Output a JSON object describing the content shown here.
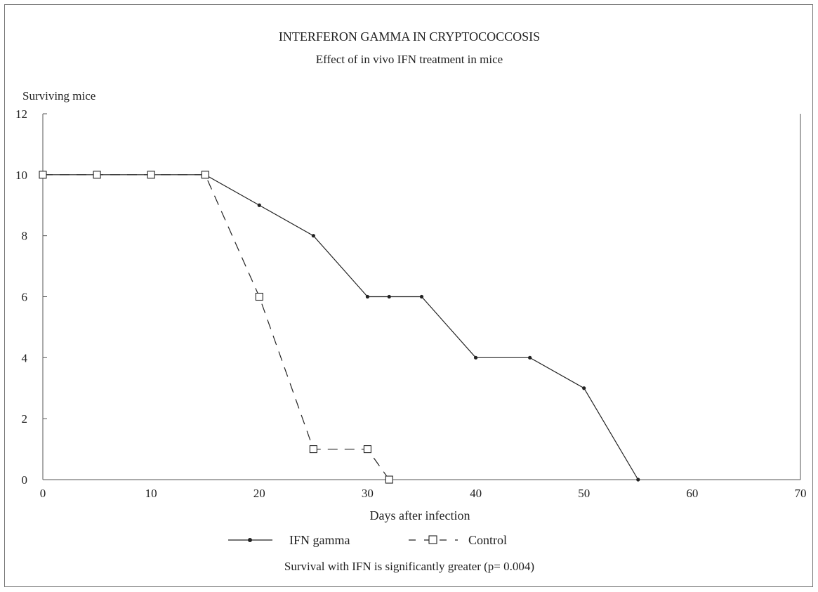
{
  "chart_data": {
    "type": "line",
    "title": "INTERFERON GAMMA IN CRYPTOCOCCOSIS",
    "subtitle": "Effect of in vivo IFN treatment in mice",
    "xlabel": "Days after infection",
    "ylabel": "Surviving mice",
    "xlim": [
      0,
      70
    ],
    "ylim": [
      0,
      12
    ],
    "xticks": [
      0,
      10,
      20,
      30,
      40,
      50,
      60,
      70
    ],
    "yticks": [
      0,
      2,
      4,
      6,
      8,
      10,
      12
    ],
    "grid": false,
    "legend_position": "bottom",
    "series": [
      {
        "name": "IFN gamma",
        "line_style": "solid",
        "marker": "filled-dot",
        "color": "#222222",
        "x": [
          0,
          5,
          10,
          15,
          20,
          25,
          30,
          32,
          35,
          40,
          45,
          50,
          55
        ],
        "y": [
          10,
          10,
          10,
          10,
          9,
          8,
          6,
          6,
          6,
          4,
          4,
          3,
          0
        ]
      },
      {
        "name": "Control",
        "line_style": "dashed",
        "marker": "open-square",
        "color": "#222222",
        "x": [
          0,
          5,
          10,
          15,
          20,
          25,
          30,
          32
        ],
        "y": [
          10,
          10,
          10,
          10,
          6,
          1,
          1,
          0
        ]
      }
    ],
    "annotation": "Survival with IFN is significantly greater (p= 0.004)"
  }
}
